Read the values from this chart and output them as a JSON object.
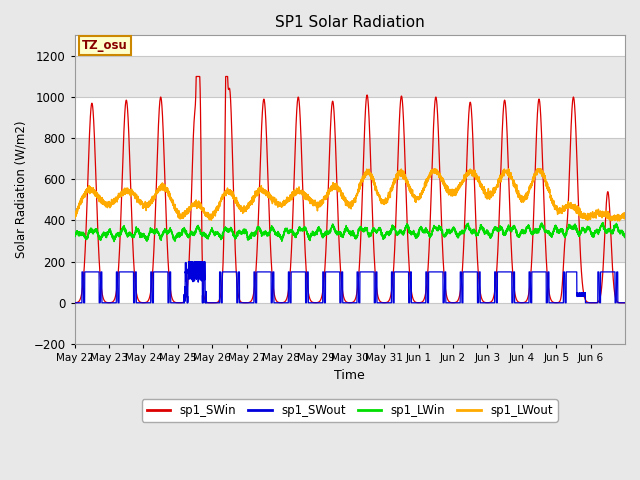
{
  "title": "SP1 Solar Radiation",
  "ylabel": "Solar Radiation (W/m2)",
  "xlabel": "Time",
  "ylim": [
    -200,
    1300
  ],
  "yticks": [
    -200,
    0,
    200,
    400,
    600,
    800,
    1000,
    1200
  ],
  "fig_bg_color": "#e8e8e8",
  "plot_bg_color": "#ffffff",
  "band_color_light": "#e8e8e8",
  "band_color_white": "#ffffff",
  "grid_color": "#c8c8c8",
  "color_SWin": "#dd0000",
  "color_SWout": "#0000dd",
  "color_LWin": "#00dd00",
  "color_LWout": "#ffaa00",
  "tz_label": "TZ_osu",
  "x_tick_labels": [
    "May 22",
    "May 23",
    "May 24",
    "May 25",
    "May 26",
    "May 27",
    "May 28",
    "May 29",
    "May 30",
    "May 31",
    "Jun 1",
    "Jun 2",
    "Jun 3",
    "Jun 4",
    "Jun 5",
    "Jun 6"
  ],
  "n_days": 16,
  "pts_per_day": 288
}
